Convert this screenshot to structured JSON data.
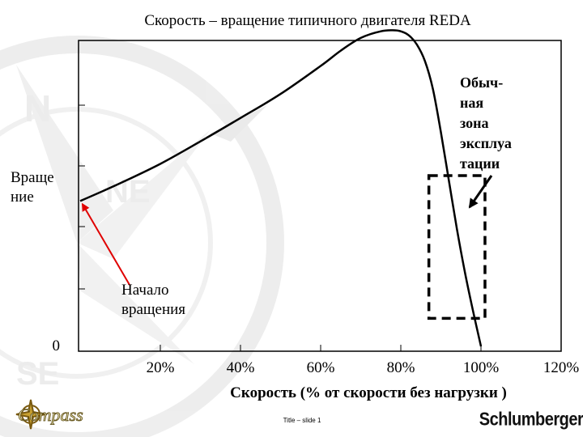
{
  "chart_data": {
    "type": "line",
    "title": "Скорость – вращение типичного двигателя REDA",
    "xlabel": "Скорость  (% от скорости без нагрузки )",
    "ylabel_lines": [
      "Враще",
      "ние"
    ],
    "x_tick_labels": [
      "20%",
      "40%",
      "60%",
      "80%",
      "100%",
      "120%"
    ],
    "x_ticks": [
      20,
      40,
      60,
      80,
      100,
      120
    ],
    "y_zero_label": "0",
    "xlim": [
      0,
      120
    ],
    "ylim": [
      0,
      6
    ],
    "grid": false,
    "series": [
      {
        "x": [
          0,
          10,
          20,
          30,
          40,
          50,
          60,
          65,
          70,
          75,
          78,
          80,
          82,
          84,
          86,
          88,
          90,
          92,
          94,
          96,
          98,
          100
        ],
        "y": [
          2.85,
          3.2,
          3.58,
          4.02,
          4.48,
          4.95,
          5.5,
          5.8,
          6.05,
          6.18,
          6.2,
          6.18,
          6.1,
          5.92,
          5.6,
          5.05,
          4.2,
          3.25,
          2.3,
          1.45,
          0.7,
          0
        ]
      }
    ],
    "annotations": [
      {
        "id": "start",
        "lines": [
          "Начало",
          "вращения"
        ]
      },
      {
        "id": "zone",
        "lines": [
          "Обыч-",
          "ная",
          "зона",
          "эксплуа",
          "тации"
        ]
      }
    ],
    "operating_zone": {
      "x_range": [
        87,
        101
      ],
      "y_range": [
        0.55,
        3.35
      ]
    }
  },
  "footer": {
    "logo_left": "Compass",
    "slide_label": "Title – slide 1",
    "logo_right": "Schlumberger"
  },
  "colors": {
    "arrow_red": "#e00000",
    "watermark": "#e6e6e6",
    "text": "#000000"
  }
}
